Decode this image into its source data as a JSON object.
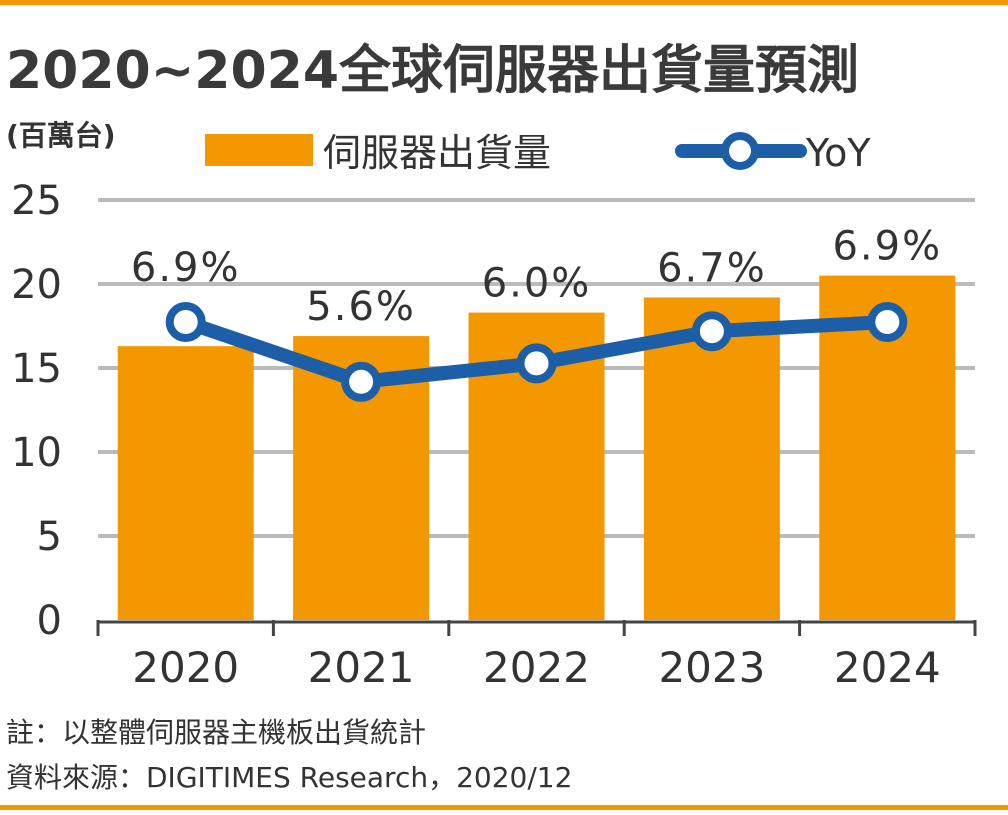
{
  "chart_data": {
    "type": "bar",
    "title": "2020~2024全球伺服器出貨量預測",
    "ylabel": "(百萬台)",
    "categories": [
      "2020",
      "2021",
      "2022",
      "2023",
      "2024"
    ],
    "series": [
      {
        "name": "伺服器出貨量",
        "type": "bar",
        "values": [
          16.3,
          16.9,
          18.3,
          19.2,
          20.5
        ]
      },
      {
        "name": "YoY",
        "type": "line",
        "values": [
          6.9,
          5.6,
          6.0,
          6.7,
          6.9
        ],
        "labels": [
          "6.9%",
          "5.6%",
          "6.0%",
          "6.7%",
          "6.9%"
        ]
      }
    ],
    "yticks": [
      "0",
      "5",
      "10",
      "15",
      "20",
      "25"
    ],
    "ylim": [
      0,
      25
    ],
    "grid": true,
    "legend": "top",
    "notes": [
      "註：以整體伺服器主機板出貨統計",
      "資料來源：DIGITIMES Research，2020/12"
    ],
    "colors": {
      "bar": "#F39800",
      "line": "#1C5FA8",
      "accent": "#F39800",
      "grid": "#BBBBBB",
      "text": "#333333"
    }
  }
}
